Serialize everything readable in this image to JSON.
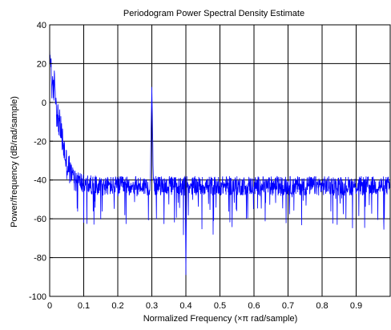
{
  "chart_data": {
    "type": "line",
    "title": "Periodogram Power Spectral Density Estimate",
    "xlabel": "Normalized Frequency  (×π rad/sample)",
    "ylabel": "Power/frequency (dB/rad/sample)",
    "xlim": [
      0,
      1
    ],
    "ylim": [
      -100,
      40
    ],
    "x_ticks": [
      0,
      0.1,
      0.2,
      0.3,
      0.4,
      0.5,
      0.6,
      0.7,
      0.8,
      0.9
    ],
    "x_tick_labels": [
      "0",
      "0.1",
      "0.2",
      "0.3",
      "0.4",
      "0.5",
      "0.6",
      "0.7",
      "0.8",
      "0.9"
    ],
    "y_ticks": [
      40,
      20,
      0,
      -20,
      -40,
      -60,
      -80,
      -100
    ],
    "y_tick_labels": [
      "40",
      "20",
      "0",
      "-20",
      "-40",
      "-60",
      "-80",
      "-100"
    ],
    "grid": true,
    "line_color": "#0000ff",
    "series": [
      {
        "x": [
          0.0,
          0.003,
          0.006,
          0.01,
          0.015,
          0.02,
          0.03,
          0.04,
          0.05,
          0.07,
          0.1,
          0.15,
          0.2,
          0.25,
          0.295,
          0.3,
          0.305,
          0.35,
          0.398,
          0.4,
          0.402,
          0.45,
          0.5,
          0.6,
          0.7,
          0.8,
          0.9,
          1.0
        ],
        "values": [
          22,
          24,
          10,
          4,
          12,
          -4,
          -12,
          -22,
          -32,
          -38,
          -42,
          -43,
          -43,
          -43,
          -43,
          8,
          -43,
          -43,
          -43,
          -89,
          -43,
          -43,
          -43,
          -43,
          -43,
          -43,
          -43,
          -43
        ]
      }
    ]
  }
}
